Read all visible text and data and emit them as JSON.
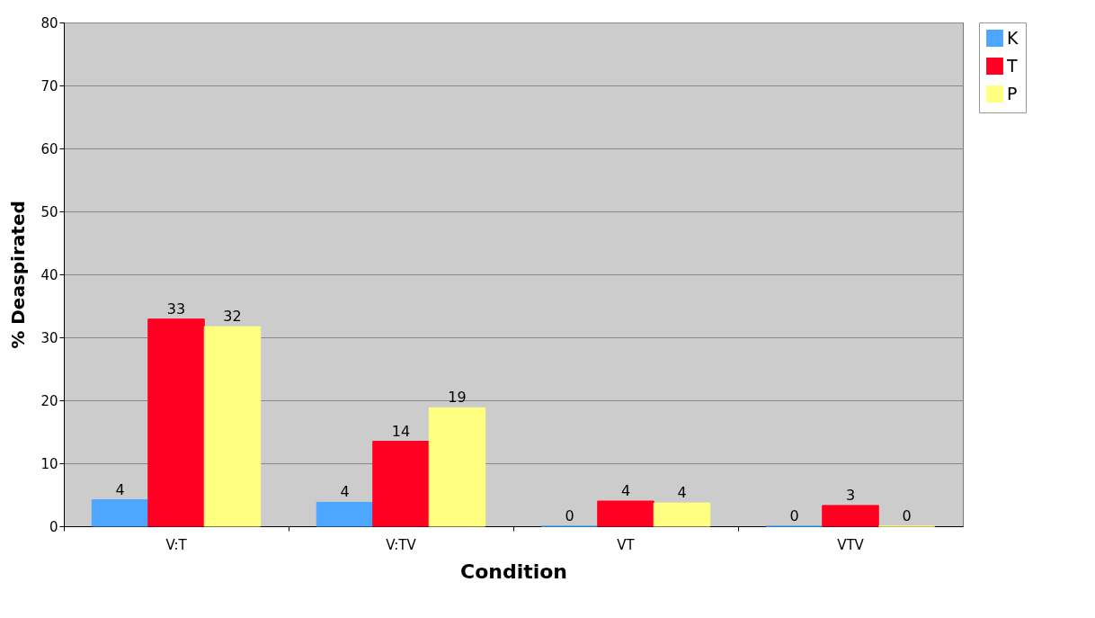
{
  "chart_data": {
    "type": "bar",
    "xlabel": "Condition",
    "ylabel": "% Deaspirated",
    "categories": [
      "V:T",
      "V:TV",
      "VT",
      "VTV"
    ],
    "series": [
      {
        "name": "K",
        "color": "#4da6ff",
        "values": [
          4.2,
          3.8,
          0,
          0
        ],
        "value_labels": [
          "4",
          "4",
          "0",
          "0"
        ]
      },
      {
        "name": "T",
        "color": "#ff0022",
        "values": [
          32.9,
          13.5,
          4.0,
          3.3
        ],
        "value_labels": [
          "33",
          "14",
          "4",
          "3"
        ]
      },
      {
        "name": "P",
        "color": "#ffff80",
        "values": [
          31.7,
          18.8,
          3.7,
          0
        ],
        "value_labels": [
          "32",
          "19",
          "4",
          "0"
        ]
      }
    ],
    "ylim": [
      0,
      80
    ],
    "yticks": [
      0,
      10,
      20,
      30,
      40,
      50,
      60,
      70,
      80
    ],
    "grid": "y",
    "legend": "right"
  }
}
